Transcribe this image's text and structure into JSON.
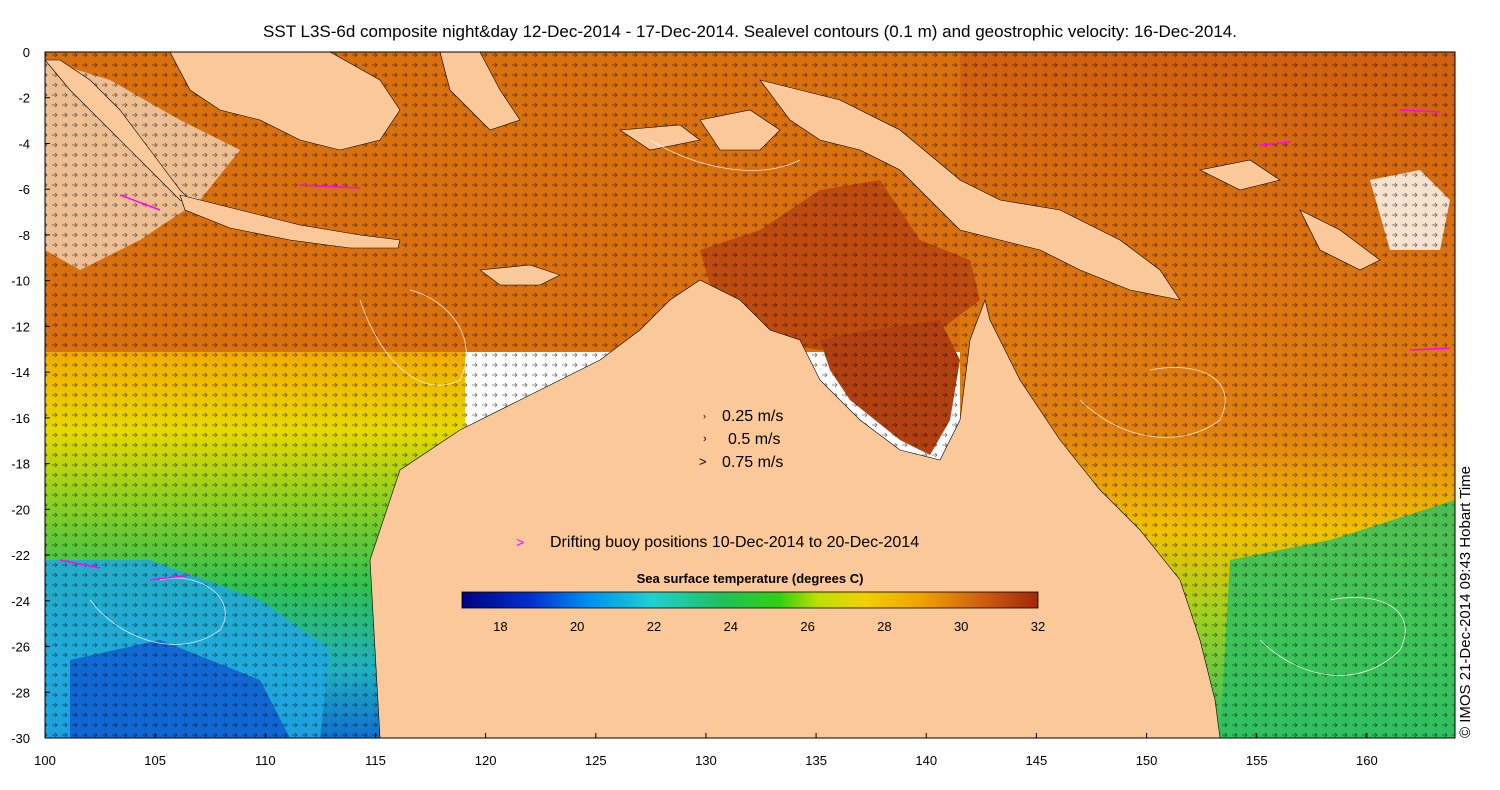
{
  "title": "SST L3S-6d composite night&day 12-Dec-2014 - 17-Dec-2014. Sealevel contours (0.1 m) and geostrophic velocity: 16-Dec-2014.",
  "x_ticks": [
    "100",
    "105",
    "110",
    "115",
    "120",
    "125",
    "130",
    "135",
    "140",
    "145",
    "150",
    "155",
    "160"
  ],
  "y_ticks": [
    "0",
    "-2",
    "-4",
    "-6",
    "-8",
    "-10",
    "-12",
    "-14",
    "-16",
    "-18",
    "-20",
    "-22",
    "-24",
    "-26",
    "-28",
    "-30"
  ],
  "velocity_legend": [
    "0.25 m/s",
    "0.5 m/s",
    "0.75 m/s"
  ],
  "buoy_legend": {
    "marker": ">",
    "label": "Drifting buoy positions 10-Dec-2014 to 20-Dec-2014"
  },
  "colorbar": {
    "title": "Sea surface temperature (degrees C)",
    "labels": [
      "18",
      "20",
      "22",
      "24",
      "26",
      "28",
      "30",
      "32"
    ],
    "range": [
      17,
      32
    ]
  },
  "credit": "© IMOS 21-Dec-2014 09:43 Hobart Time",
  "colors": {
    "land": "#fbc89a",
    "ocean_warm": "#c85a10",
    "ocean_hot": "#a8380c",
    "ocean_mid": "#f0a020",
    "ocean_yellow": "#e8e800",
    "ocean_green": "#30c040",
    "ocean_cyan": "#20b8e0",
    "ocean_blue": "#1060d0",
    "buoy": "#ff00ff",
    "contour": "#ffffff"
  }
}
